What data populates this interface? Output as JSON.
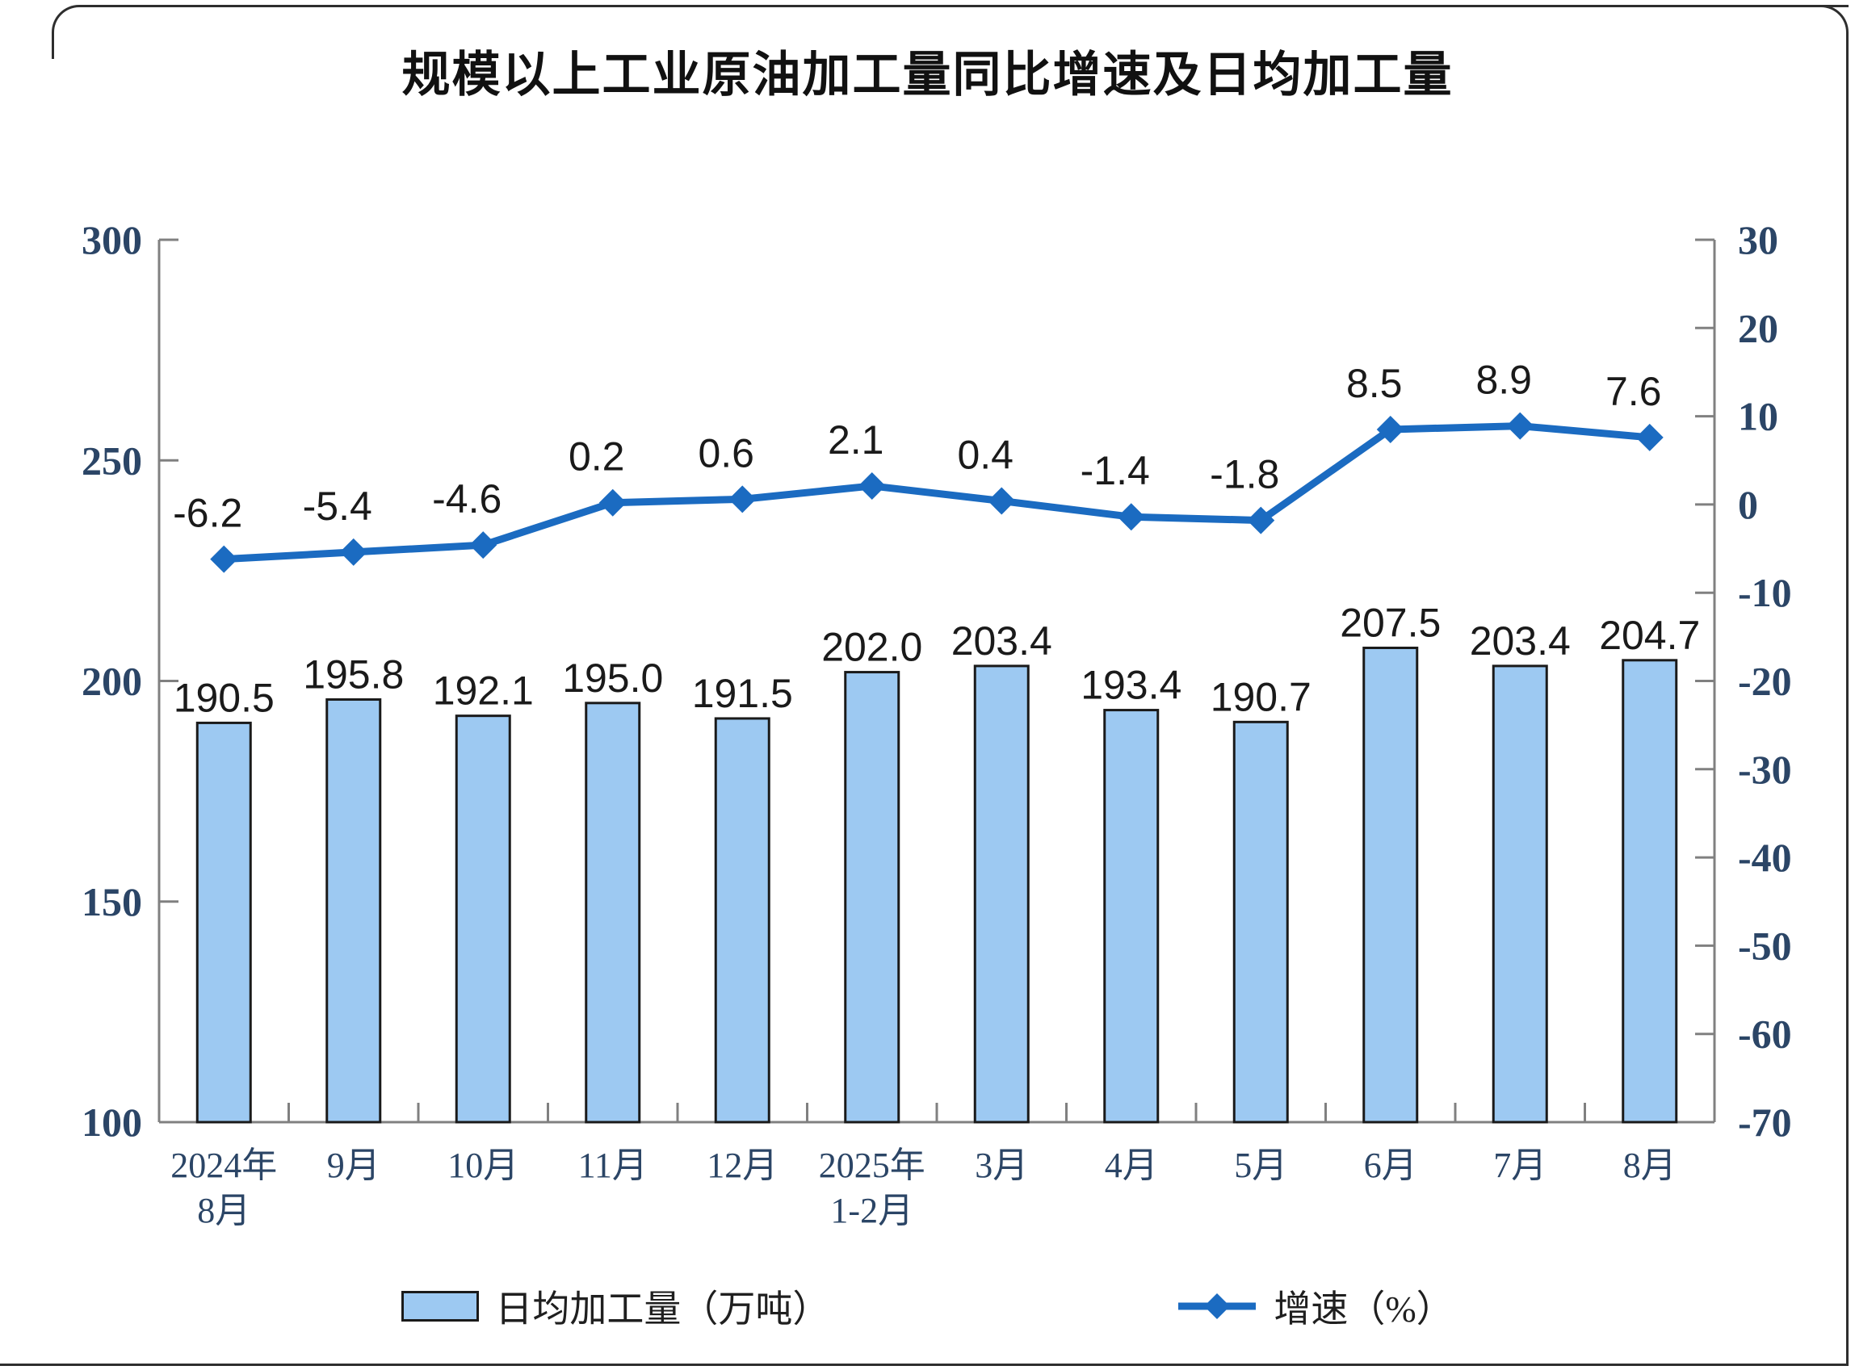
{
  "title": "规模以上工业原油加工量同比增速及日均加工量",
  "legend": {
    "bars_label": "日均加工量（万吨）",
    "line_label": "增速（%）"
  },
  "colors": {
    "bar_fill": "#9DC9F2",
    "bar_border": "#1A1A1A",
    "line": "#1B6BC1",
    "axis": "#808080",
    "tick_text": "#2B4566",
    "label_text": "#1A1A1A",
    "title_text": "#111111"
  },
  "chart_data": {
    "type": "bar+line",
    "title": "规模以上工业原油加工量同比增速及日均加工量",
    "categories": [
      [
        "2024年",
        "8月"
      ],
      [
        "9月"
      ],
      [
        "10月"
      ],
      [
        "11月"
      ],
      [
        "12月"
      ],
      [
        "2025年",
        "1-2月"
      ],
      [
        "3月"
      ],
      [
        "4月"
      ],
      [
        "5月"
      ],
      [
        "6月"
      ],
      [
        "7月"
      ],
      [
        "8月"
      ]
    ],
    "series": [
      {
        "name": "日均加工量（万吨）",
        "type": "bar",
        "axis": "left",
        "values": [
          190.5,
          195.8,
          192.1,
          195.0,
          191.5,
          202.0,
          203.4,
          193.4,
          190.7,
          207.5,
          203.4,
          204.7
        ]
      },
      {
        "name": "增速（%）",
        "type": "line",
        "axis": "right",
        "values": [
          -6.2,
          -5.4,
          -4.6,
          0.2,
          0.6,
          2.1,
          0.4,
          -1.4,
          -1.8,
          8.5,
          8.9,
          7.6
        ]
      }
    ],
    "left_axis": {
      "min": 100,
      "max": 300,
      "ticks": [
        300,
        250,
        200,
        150,
        100
      ]
    },
    "right_axis": {
      "min": -70,
      "max": 30,
      "ticks": [
        30,
        20,
        10,
        0,
        -10,
        -20,
        -30,
        -40,
        -50,
        -60,
        -70
      ]
    },
    "grid": false,
    "legend_position": "bottom"
  }
}
